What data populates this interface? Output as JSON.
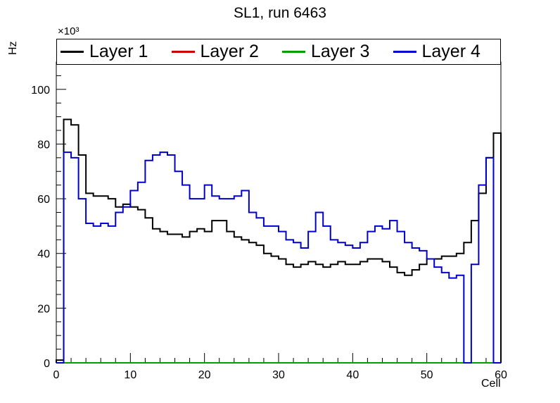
{
  "chart_data": {
    "type": "line",
    "style": "step-histogram",
    "title": "SL1, run 6463",
    "xlabel": "Cell",
    "ylabel": "Hz",
    "y_unit_multiplier": "×10³",
    "xlim": [
      0,
      60
    ],
    "ylim": [
      0,
      110
    ],
    "bin_width": 1,
    "grid": false,
    "legend_position": "top",
    "xticks": [
      0,
      10,
      20,
      30,
      40,
      50,
      60
    ],
    "yticks": [
      0,
      20,
      40,
      60,
      80,
      100
    ],
    "series": [
      {
        "name": "Layer 1",
        "color": "#000000",
        "values": [
          1,
          89,
          87,
          76,
          62,
          61,
          61,
          60,
          57,
          58,
          57,
          56,
          53,
          49,
          48,
          47,
          47,
          46,
          48,
          49,
          48,
          52,
          52,
          48,
          46,
          45,
          44,
          43,
          40,
          39,
          38,
          36,
          35,
          36,
          37,
          36,
          35,
          36,
          37,
          36,
          36,
          37,
          38,
          38,
          37,
          35,
          33,
          32,
          34,
          36,
          38,
          38,
          39,
          39,
          40,
          44,
          52,
          62,
          75,
          84
        ]
      },
      {
        "name": "Layer 2",
        "color": "#cc0000",
        "values": [
          0,
          0,
          0,
          0,
          0,
          0,
          0,
          0,
          0,
          0,
          0,
          0,
          0,
          0,
          0,
          0,
          0,
          0,
          0,
          0,
          0,
          0,
          0,
          0,
          0,
          0,
          0,
          0,
          0,
          0,
          0,
          0,
          0,
          0,
          0,
          0,
          0,
          0,
          0,
          0,
          0,
          0,
          0,
          0,
          0,
          0,
          0,
          0,
          0,
          0,
          0,
          0,
          0,
          0,
          0,
          0,
          0,
          0,
          0,
          0
        ]
      },
      {
        "name": "Layer 3",
        "color": "#00a000",
        "values": [
          0,
          0,
          0,
          0,
          0,
          0,
          0,
          0,
          0,
          0,
          0,
          0,
          0,
          0,
          0,
          0,
          0,
          0,
          0,
          0,
          0,
          0,
          0,
          0,
          0,
          0,
          0,
          0,
          0,
          0,
          0,
          0,
          0,
          0,
          0,
          0,
          0,
          0,
          0,
          0,
          0,
          0,
          0,
          0,
          0,
          0,
          0,
          0,
          0,
          0,
          0,
          0,
          0,
          0,
          0,
          0,
          0,
          0,
          0,
          0
        ]
      },
      {
        "name": "Layer 4",
        "color": "#0000cc",
        "values": [
          0,
          77,
          75,
          60,
          51,
          50,
          51,
          50,
          55,
          57,
          63,
          66,
          74,
          76,
          77,
          76,
          70,
          65,
          60,
          60,
          65,
          61,
          60,
          60,
          61,
          63,
          55,
          53,
          50,
          50,
          48,
          45,
          44,
          42,
          48,
          55,
          50,
          45,
          44,
          43,
          42,
          44,
          48,
          50,
          49,
          52,
          48,
          44,
          42,
          41,
          38,
          35,
          33,
          31,
          32,
          0,
          36,
          65,
          75,
          0
        ]
      }
    ]
  }
}
